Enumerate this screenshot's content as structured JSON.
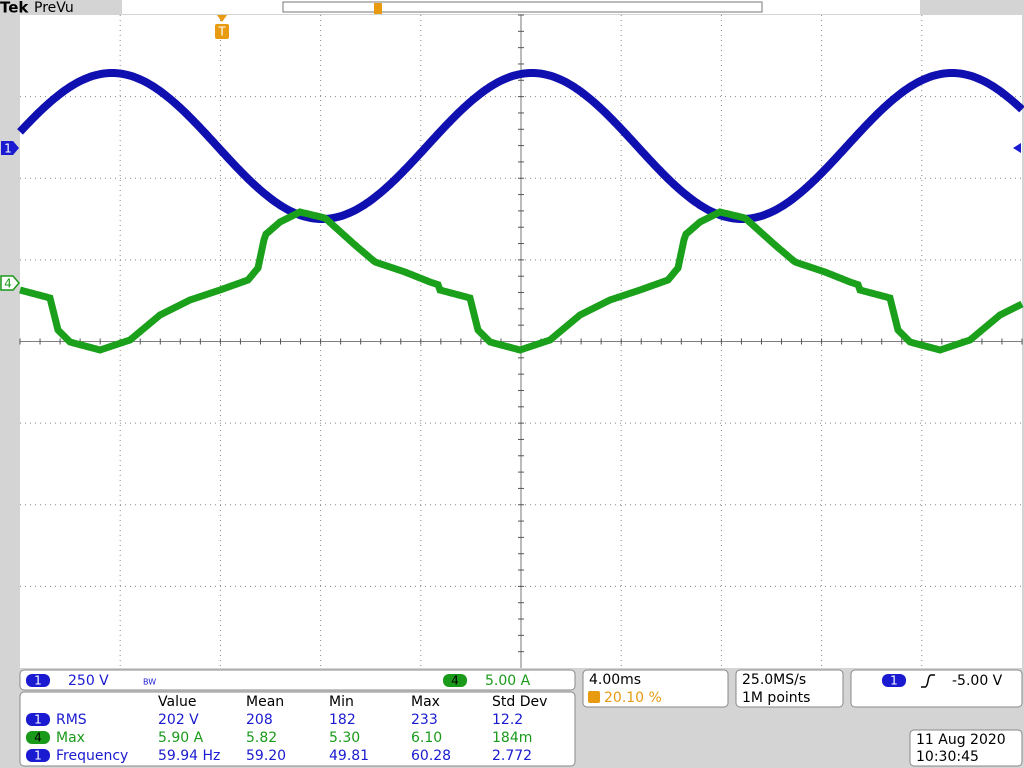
{
  "header": {
    "brand": "Tek",
    "mode": "PreVu"
  },
  "markers": {
    "trigger": "T",
    "ch1": "1",
    "ch4": "4"
  },
  "status": {
    "ch1": {
      "label": "1",
      "scale": "250 V",
      "bw": "BW"
    },
    "ch4": {
      "label": "4",
      "scale": "5.00 A"
    },
    "timebase": "4.00ms",
    "trigger_pos": "20.10 %",
    "sample_rate": "25.0MS/s",
    "record": "1M points",
    "trigger": {
      "channel": "1",
      "level": "-5.00 V"
    }
  },
  "measurements": {
    "headers": [
      "Value",
      "Mean",
      "Min",
      "Max",
      "Std Dev"
    ],
    "rows": [
      {
        "channel": "1",
        "name": "RMS",
        "values": [
          "202 V",
          "208",
          "182",
          "233",
          "12.2"
        ]
      },
      {
        "channel": "4",
        "name": "Max",
        "values": [
          "5.90 A",
          "5.82",
          "5.30",
          "6.10",
          "184m"
        ]
      },
      {
        "channel": "1",
        "name": "Frequency",
        "values": [
          "59.94 Hz",
          "59.20",
          "49.81",
          "60.28",
          "2.772"
        ]
      }
    ]
  },
  "date": "11 Aug 2020",
  "time": "10:30:45"
}
